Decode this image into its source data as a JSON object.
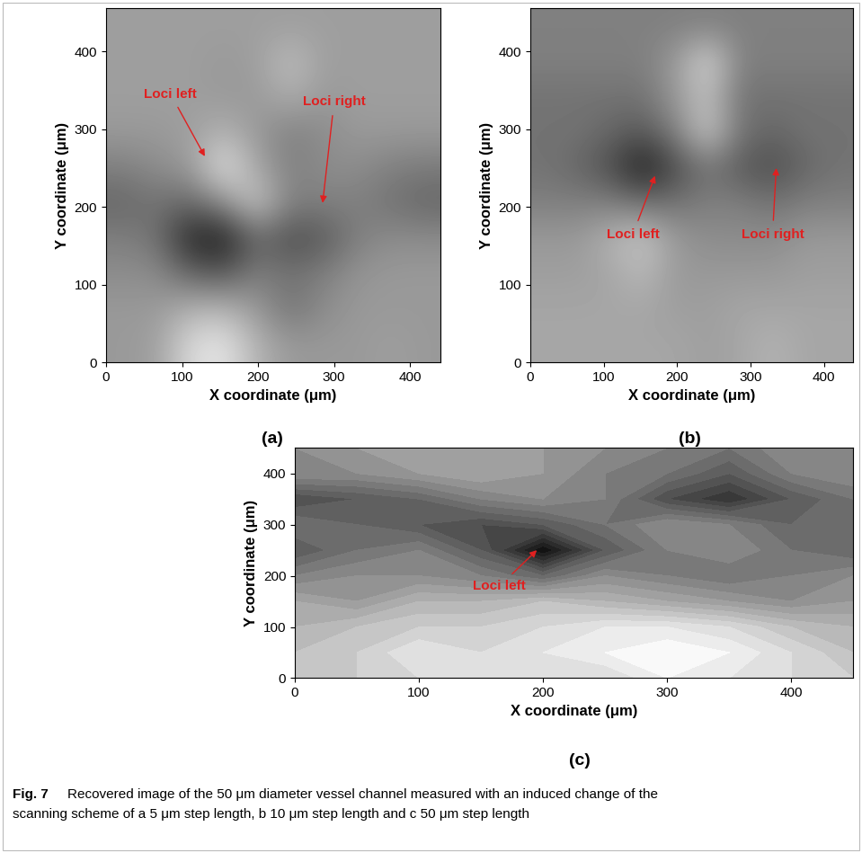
{
  "chart_data": [
    {
      "type": "heatmap",
      "label": "(a)",
      "xlabel": "X coordinate (μm)",
      "ylabel": "Y coordinate (μm)",
      "xlim": [
        0,
        440
      ],
      "ylim": [
        0,
        455
      ],
      "xticks": [
        0,
        100,
        200,
        300,
        400
      ],
      "yticks": [
        0,
        100,
        200,
        300,
        400
      ],
      "value_range": [
        0,
        1
      ],
      "cells": [
        [
          0.6,
          0.62,
          0.85,
          0.9,
          0.7,
          0.6,
          0.6,
          0.6,
          0.62,
          0.6
        ],
        [
          0.6,
          0.6,
          0.7,
          0.72,
          0.6,
          0.45,
          0.55,
          0.6,
          0.6,
          0.6
        ],
        [
          0.55,
          0.55,
          0.4,
          0.35,
          0.5,
          0.45,
          0.5,
          0.58,
          0.6,
          0.6
        ],
        [
          0.5,
          0.45,
          0.15,
          0.1,
          0.4,
          0.3,
          0.35,
          0.5,
          0.55,
          0.55
        ],
        [
          0.4,
          0.45,
          0.4,
          0.55,
          0.8,
          0.5,
          0.5,
          0.5,
          0.45,
          0.4
        ],
        [
          0.5,
          0.55,
          0.6,
          0.9,
          0.65,
          0.5,
          0.55,
          0.55,
          0.5,
          0.48
        ],
        [
          0.6,
          0.6,
          0.62,
          0.7,
          0.6,
          0.5,
          0.55,
          0.6,
          0.6,
          0.6
        ],
        [
          0.62,
          0.62,
          0.62,
          0.6,
          0.6,
          0.68,
          0.6,
          0.62,
          0.62,
          0.62
        ],
        [
          0.62,
          0.62,
          0.62,
          0.6,
          0.62,
          0.75,
          0.62,
          0.62,
          0.62,
          0.62
        ],
        [
          0.62,
          0.62,
          0.62,
          0.62,
          0.62,
          0.62,
          0.62,
          0.62,
          0.62,
          0.62
        ]
      ],
      "annotations": [
        {
          "text": "Loci left",
          "point": [
            130,
            265
          ],
          "text_at": [
            85,
            345
          ]
        },
        {
          "text": "Loci right",
          "point": [
            285,
            205
          ],
          "text_at": [
            300,
            335
          ]
        }
      ]
    },
    {
      "type": "heatmap",
      "label": "(b)",
      "xlabel": "X coordinate (μm)",
      "ylabel": "Y coordinate (μm)",
      "xlim": [
        0,
        440
      ],
      "ylim": [
        0,
        455
      ],
      "xticks": [
        0,
        100,
        200,
        300,
        400
      ],
      "yticks": [
        0,
        100,
        200,
        300,
        400
      ],
      "value_range": [
        0,
        1
      ],
      "cells": [
        [
          0.65,
          0.65,
          0.65,
          0.65,
          0.65,
          0.62,
          0.65,
          0.7,
          0.65,
          0.65
        ],
        [
          0.65,
          0.65,
          0.65,
          0.65,
          0.62,
          0.62,
          0.65,
          0.65,
          0.65,
          0.65
        ],
        [
          0.62,
          0.62,
          0.65,
          0.72,
          0.6,
          0.6,
          0.6,
          0.6,
          0.62,
          0.62
        ],
        [
          0.6,
          0.6,
          0.7,
          0.78,
          0.6,
          0.55,
          0.55,
          0.55,
          0.6,
          0.6
        ],
        [
          0.5,
          0.5,
          0.5,
          0.45,
          0.45,
          0.5,
          0.5,
          0.45,
          0.5,
          0.5
        ],
        [
          0.45,
          0.4,
          0.3,
          0.1,
          0.3,
          0.45,
          0.35,
          0.3,
          0.4,
          0.45
        ],
        [
          0.45,
          0.45,
          0.4,
          0.35,
          0.5,
          0.8,
          0.45,
          0.4,
          0.45,
          0.45
        ],
        [
          0.45,
          0.45,
          0.45,
          0.45,
          0.6,
          0.75,
          0.45,
          0.45,
          0.45,
          0.45
        ],
        [
          0.5,
          0.5,
          0.5,
          0.5,
          0.6,
          0.85,
          0.5,
          0.5,
          0.5,
          0.5
        ],
        [
          0.5,
          0.5,
          0.5,
          0.5,
          0.5,
          0.5,
          0.5,
          0.5,
          0.5,
          0.5
        ]
      ],
      "annotations": [
        {
          "text": "Loci left",
          "point": [
            170,
            240
          ],
          "text_at": [
            140,
            165
          ]
        },
        {
          "text": "Loci right",
          "point": [
            335,
            250
          ],
          "text_at": [
            330,
            165
          ]
        }
      ]
    },
    {
      "type": "contour",
      "label": "(c)",
      "xlabel": "X coordinate (μm)",
      "ylabel": "Y coordinate (μm)",
      "xlim": [
        0,
        450
      ],
      "ylim": [
        0,
        450
      ],
      "xticks": [
        0,
        100,
        200,
        300,
        400
      ],
      "yticks": [
        0,
        100,
        200,
        300,
        400
      ],
      "value_range": [
        0,
        1
      ],
      "x": [
        0,
        50,
        100,
        150,
        200,
        250,
        300,
        350,
        400,
        450
      ],
      "y": [
        0,
        50,
        100,
        150,
        200,
        250,
        300,
        350,
        400,
        450
      ],
      "cells": [
        [
          0.8,
          0.8,
          0.85,
          0.9,
          0.9,
          0.85,
          0.95,
          0.9,
          0.85,
          0.8
        ],
        [
          0.75,
          0.8,
          0.9,
          0.85,
          0.9,
          0.95,
          1.0,
          0.95,
          0.85,
          0.75
        ],
        [
          0.7,
          0.75,
          0.8,
          0.8,
          0.85,
          0.9,
          0.9,
          0.85,
          0.75,
          0.7
        ],
        [
          0.65,
          0.6,
          0.7,
          0.7,
          0.75,
          0.7,
          0.65,
          0.6,
          0.55,
          0.6
        ],
        [
          0.5,
          0.55,
          0.55,
          0.5,
          0.4,
          0.55,
          0.5,
          0.45,
          0.5,
          0.55
        ],
        [
          0.35,
          0.45,
          0.5,
          0.35,
          0.05,
          0.35,
          0.5,
          0.55,
          0.45,
          0.4
        ],
        [
          0.45,
          0.4,
          0.35,
          0.3,
          0.35,
          0.45,
          0.55,
          0.5,
          0.4,
          0.45
        ],
        [
          0.3,
          0.35,
          0.4,
          0.5,
          0.55,
          0.5,
          0.3,
          0.2,
          0.35,
          0.45
        ],
        [
          0.55,
          0.55,
          0.6,
          0.65,
          0.6,
          0.5,
          0.45,
          0.35,
          0.5,
          0.55
        ],
        [
          0.55,
          0.6,
          0.65,
          0.65,
          0.6,
          0.55,
          0.5,
          0.45,
          0.55,
          0.55
        ]
      ],
      "annotations": [
        {
          "text": "Loci left",
          "point": [
            195,
            250
          ],
          "text_at": [
            165,
            180
          ]
        }
      ]
    }
  ],
  "caption": {
    "label": "Fig. 7",
    "lines": [
      "Recovered image of the 50 μm diameter vessel channel measured with an induced change of the",
      "scanning scheme of a 5 μm step length, b 10 μm step length and c 50 μm step length"
    ]
  }
}
